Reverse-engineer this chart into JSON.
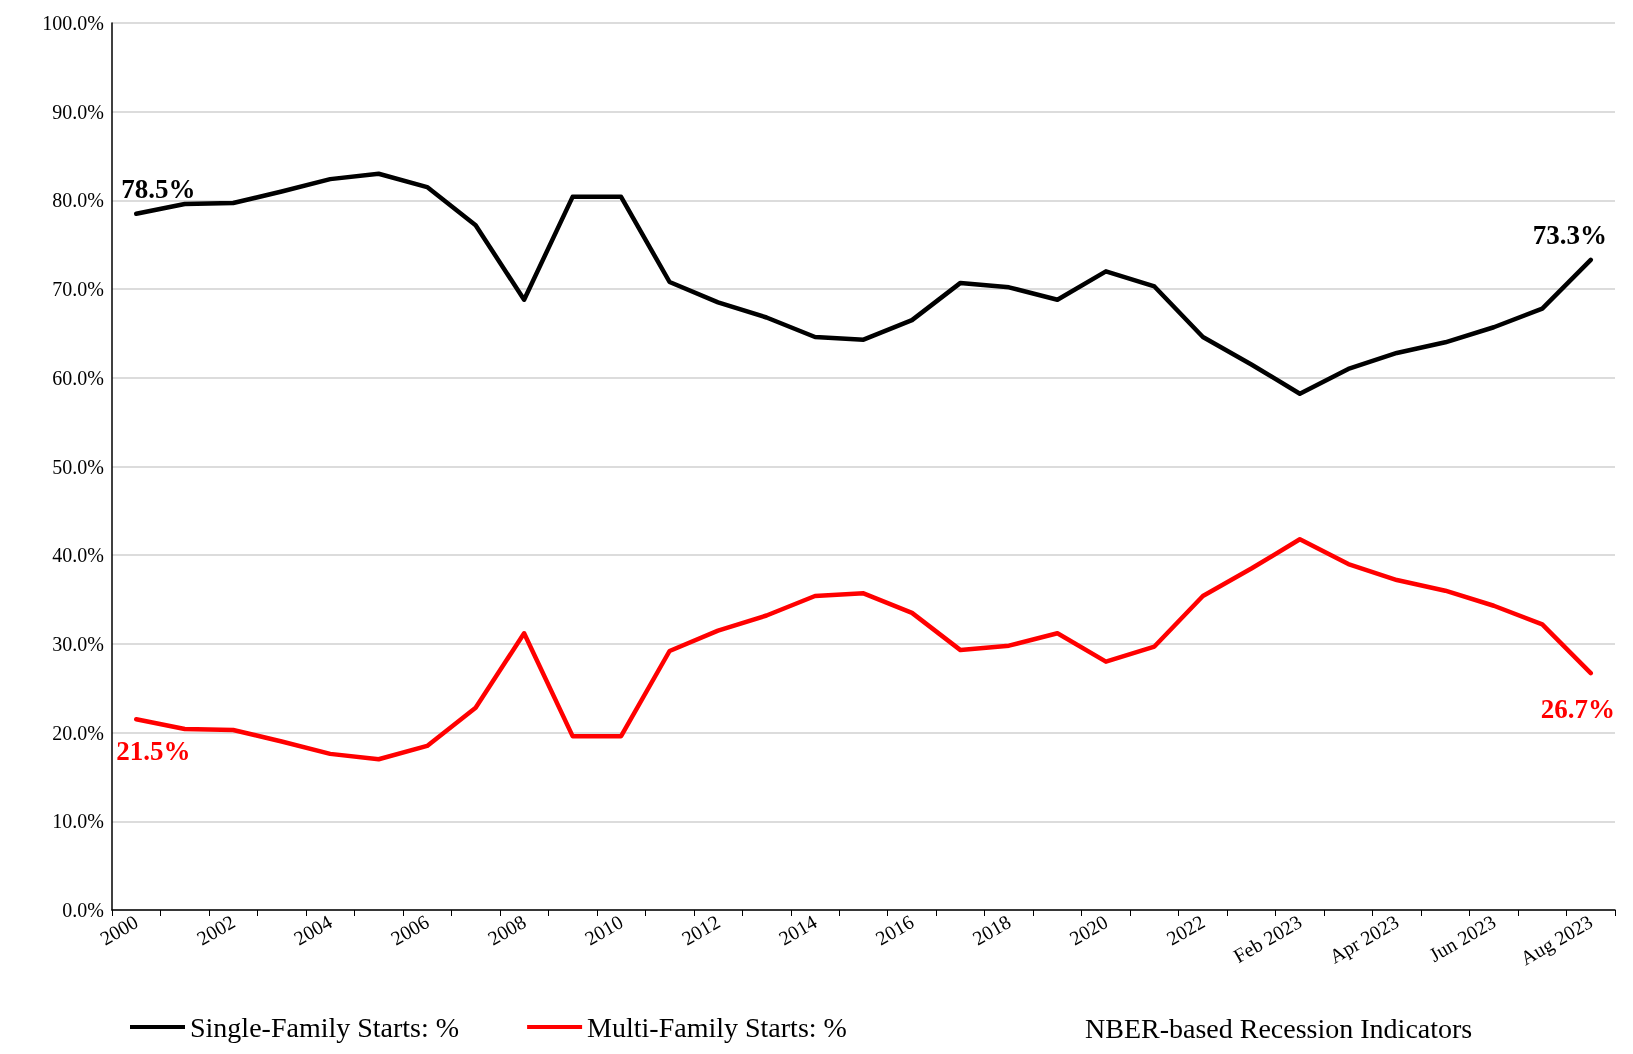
{
  "chart_data": {
    "type": "line",
    "categories": [
      "2000",
      null,
      "2002",
      null,
      "2004",
      null,
      "2006",
      null,
      "2008",
      null,
      "2010",
      null,
      "2012",
      null,
      "2014",
      null,
      "2016",
      null,
      "2018",
      null,
      "2020",
      null,
      "2022",
      null,
      "Feb 2023",
      null,
      "Apr 2023",
      null,
      "Jun 2023",
      null,
      "Aug 2023"
    ],
    "series": [
      {
        "name": "Single-Family Starts: %",
        "color": "#000000",
        "values": [
          78.5,
          79.6,
          79.7,
          81.0,
          82.4,
          83.0,
          81.5,
          77.2,
          68.8,
          80.4,
          80.4,
          70.8,
          68.5,
          66.8,
          64.6,
          64.3,
          66.5,
          70.7,
          70.2,
          68.8,
          72.0,
          70.3,
          64.6,
          61.5,
          58.2,
          61.0,
          62.8,
          64.0,
          65.7,
          67.8,
          73.3
        ],
        "value_labels": [
          "78.5%",
          null,
          null,
          null,
          null,
          null,
          null,
          null,
          null,
          null,
          null,
          null,
          null,
          null,
          null,
          null,
          null,
          null,
          null,
          null,
          null,
          null,
          null,
          null,
          null,
          null,
          null,
          null,
          null,
          null,
          "73.3%"
        ]
      },
      {
        "name": "Multi-Family Starts: %",
        "color": "#ff0000",
        "values": [
          21.5,
          20.4,
          20.3,
          19.0,
          17.6,
          17.0,
          18.5,
          22.8,
          31.2,
          19.6,
          19.6,
          29.2,
          31.5,
          33.2,
          35.4,
          35.7,
          33.5,
          29.3,
          29.8,
          31.2,
          28.0,
          29.7,
          35.4,
          38.5,
          41.8,
          39.0,
          37.2,
          36.0,
          34.3,
          32.2,
          26.7
        ],
        "value_labels": [
          "21.5%",
          null,
          null,
          null,
          null,
          null,
          null,
          null,
          null,
          null,
          null,
          null,
          null,
          null,
          null,
          null,
          null,
          null,
          null,
          null,
          null,
          null,
          null,
          null,
          null,
          null,
          null,
          null,
          null,
          null,
          "26.7%"
        ]
      }
    ],
    "ylim": [
      0,
      100
    ],
    "yticks": [
      {
        "value": 0,
        "label": "0.0%"
      },
      {
        "value": 10,
        "label": "10.0%"
      },
      {
        "value": 20,
        "label": "20.0%"
      },
      {
        "value": 30,
        "label": "30.0%"
      },
      {
        "value": 40,
        "label": "40.0%"
      },
      {
        "value": 50,
        "label": "50.0%"
      },
      {
        "value": 60,
        "label": "60.0%"
      },
      {
        "value": 70,
        "label": "70.0%"
      },
      {
        "value": 80,
        "label": "80.0%"
      },
      {
        "value": 90,
        "label": "90.0%"
      },
      {
        "value": 100,
        "label": "100.0%"
      }
    ],
    "grid": "y",
    "legend": "bottom",
    "marker": "none",
    "line_style": "solid",
    "annotations": [
      "NBER-based Recession Indicators"
    ]
  }
}
